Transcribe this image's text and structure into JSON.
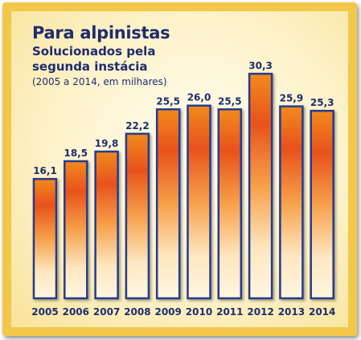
{
  "header": {
    "title": "Para alpinistas",
    "subtitle": "Solucionados pela segunda instácia",
    "units": "(2005 a 2014, em milhares)"
  },
  "colors": {
    "frame": "#f2c84a",
    "text": "#1f2c6e",
    "bar_outline": "#253a8c",
    "bar_top": "#f28a1a",
    "bar_mid": "#e8521a",
    "bar_bottom": "#fff6e0"
  },
  "chart_data": {
    "type": "bar",
    "title": "Para alpinistas",
    "subtitle": "Solucionados pela segunda instácia",
    "units": "(2005 a 2014, em milhares)",
    "categories": [
      "2005",
      "2006",
      "2007",
      "2008",
      "2009",
      "2010",
      "2011",
      "2012",
      "2013",
      "2014"
    ],
    "values": [
      16.1,
      18.5,
      19.8,
      22.2,
      25.5,
      26.0,
      25.5,
      30.3,
      25.9,
      25.3
    ],
    "value_labels": [
      "16,1",
      "18,5",
      "19,8",
      "22,2",
      "25,5",
      "26,0",
      "25,5",
      "30,3",
      "25,9",
      "25,3"
    ],
    "ylim": [
      0,
      30.3
    ],
    "grid": false,
    "legend": false
  }
}
